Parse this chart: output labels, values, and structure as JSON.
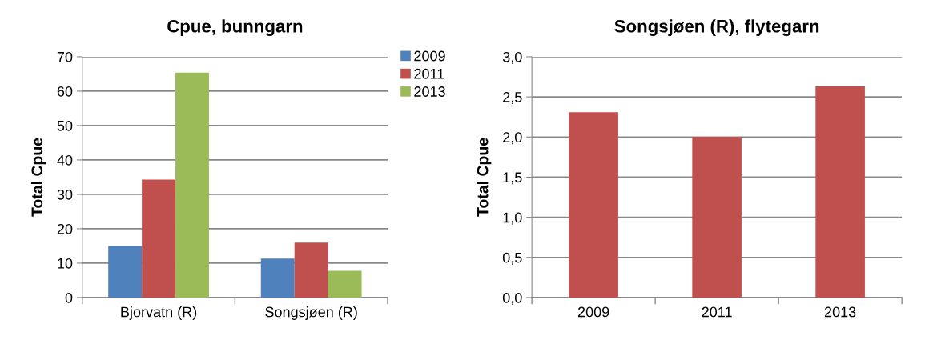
{
  "chart_data": [
    {
      "type": "bar",
      "title": "Cpue, bunngarn",
      "ylabel": "Total Cpue",
      "categories": [
        "Bjorvatn (R)",
        "Songsjøen (R)"
      ],
      "series": [
        {
          "name": "2009",
          "color": "#4f81bd",
          "values": [
            15.0,
            11.3
          ]
        },
        {
          "name": "2011",
          "color": "#c0504d",
          "values": [
            34.3,
            16.0
          ]
        },
        {
          "name": "2013",
          "color": "#9bbb59",
          "values": [
            65.4,
            7.8
          ]
        }
      ],
      "ylim": [
        0,
        70
      ],
      "yticks": [
        0,
        10,
        20,
        30,
        40,
        50,
        60,
        70
      ],
      "grid": "y",
      "legend": "top right"
    },
    {
      "type": "bar",
      "title": "Songsjøen (R), flytegarn",
      "ylabel": "Total Cpue",
      "categories": [
        "2009",
        "2011",
        "2013"
      ],
      "series": [
        {
          "color": "#c0504d",
          "values": [
            2.31,
            2.0,
            2.63
          ]
        }
      ],
      "ylim": [
        0,
        3
      ],
      "yticks": [
        {
          "value": 0,
          "label": "0,0"
        },
        {
          "value": 0.5,
          "label": "0,5"
        },
        {
          "value": 1,
          "label": "1,0"
        },
        {
          "value": 1.5,
          "label": "1,5"
        },
        {
          "value": 2,
          "label": "2,0"
        },
        {
          "value": 2.5,
          "label": "2,5"
        },
        {
          "value": 3,
          "label": "3,0"
        }
      ],
      "grid": "y"
    }
  ]
}
